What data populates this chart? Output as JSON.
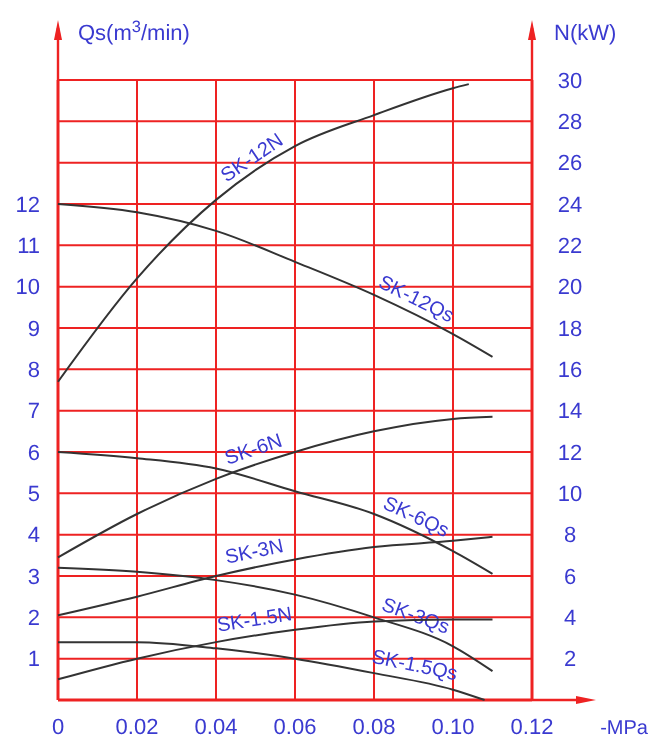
{
  "chart_data": {
    "type": "line",
    "ylabel": "Qs(m$^{3}$/min)",
    "y2label": "N(kW)",
    "xlabel": "-MPa",
    "x": [
      0,
      0.02,
      0.04,
      0.06,
      0.08,
      0.1,
      0.11
    ],
    "xlim": [
      0,
      0.12
    ],
    "xticks": [
      0,
      0.02,
      0.04,
      0.06,
      0.08,
      {
        "value": 0.1,
        "label": "0.10"
      },
      0.12
    ],
    "ylim": [
      0,
      15
    ],
    "yticks": [
      {
        "value": 0,
        "label": null
      },
      1,
      2,
      3,
      4,
      5,
      6,
      7,
      8,
      9,
      10,
      11,
      12,
      {
        "value": 13,
        "label": null
      },
      {
        "value": 14,
        "label": null
      },
      {
        "value": 15,
        "label": null
      }
    ],
    "y2lim": [
      0,
      30
    ],
    "y2ticks": [
      2,
      4,
      6,
      8,
      10,
      12,
      14,
      16,
      18,
      20,
      22,
      24,
      26,
      28,
      30
    ],
    "grid": true,
    "marker": "none",
    "line_style": "solid",
    "series": [
      {
        "name": "SK-12N",
        "axis": "y2",
        "color": "#333333",
        "x": [
          0,
          0.02,
          0.04,
          0.06,
          0.08,
          0.1,
          0.104
        ],
        "values": [
          15.4,
          20.4,
          24.2,
          26.8,
          28.3,
          29.6,
          29.8
        ]
      },
      {
        "name": "SK-12Qs",
        "color": "#333333",
        "values": [
          12,
          11.8,
          11.35,
          10.6,
          9.8,
          8.85,
          8.3
        ]
      },
      {
        "name": "SK-6N",
        "axis": "y2",
        "color": "#333333",
        "values": [
          6.9,
          9.0,
          10.7,
          12.0,
          13.0,
          13.6,
          13.7
        ]
      },
      {
        "name": "SK-6Qs",
        "color": "#333333",
        "values": [
          6.0,
          5.85,
          5.6,
          5.05,
          4.5,
          3.6,
          3.05
        ]
      },
      {
        "name": "SK-3N",
        "axis": "y2",
        "color": "#333333",
        "values": [
          4.1,
          5.0,
          6.0,
          6.8,
          7.4,
          7.7,
          7.9
        ]
      },
      {
        "name": "SK-3Qs",
        "color": "#333333",
        "values": [
          3.2,
          3.1,
          2.9,
          2.55,
          2.0,
          1.3,
          0.7
        ]
      },
      {
        "name": "SK-1.5N",
        "axis": "y2",
        "color": "#333333",
        "values": [
          1.0,
          2.0,
          2.8,
          3.4,
          3.8,
          3.9,
          3.9
        ]
      },
      {
        "name": "SK-1.5Qs",
        "color": "#333333",
        "x": [
          0,
          0.02,
          0.04,
          0.06,
          0.08,
          0.1,
          0.108
        ],
        "values": [
          1.4,
          1.4,
          1.25,
          1.0,
          0.65,
          0.25,
          0
        ]
      }
    ]
  }
}
